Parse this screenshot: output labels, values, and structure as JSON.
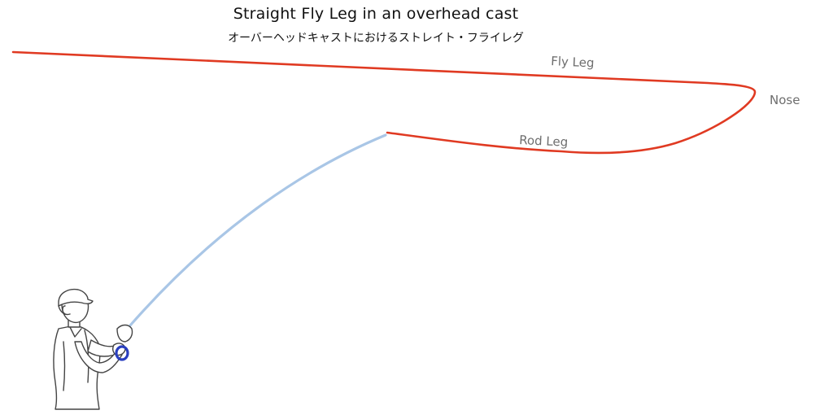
{
  "title": "Straight Fly Leg in an overhead cast",
  "subtitle": "オーバーヘッドキャストにおけるストレイト・フライレグ",
  "labels": {
    "fly_leg": "Fly Leg",
    "nose": "Nose",
    "rod_leg": "Rod Leg"
  },
  "colors": {
    "line": "#e03a22",
    "rod": "#a9c6e6",
    "reel": "#2a3fbf",
    "label": "#6e6e6e",
    "figure_stroke": "#444444"
  },
  "icons": {
    "angler": "angler-figure-icon",
    "reel": "reel-icon"
  }
}
